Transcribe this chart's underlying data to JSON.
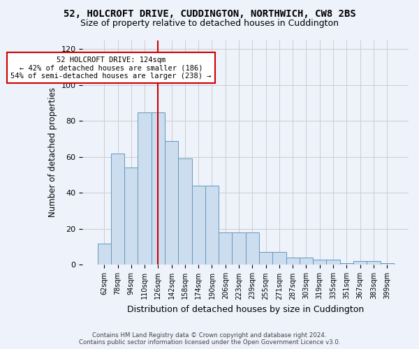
{
  "title": "52, HOLCROFT DRIVE, CUDDINGTON, NORTHWICH, CW8 2BS",
  "subtitle": "Size of property relative to detached houses in Cuddington",
  "xlabel": "Distribution of detached houses by size in Cuddington",
  "ylabel": "Number of detached properties",
  "bar_values": [
    12,
    62,
    54,
    85,
    85,
    69,
    59,
    44,
    44,
    18,
    18,
    18,
    7,
    7,
    4,
    4,
    3,
    3,
    1,
    2,
    2,
    1
  ],
  "bar_labels": [
    "62sqm",
    "78sqm",
    "94sqm",
    "110sqm",
    "126sqm",
    "142sqm",
    "158sqm",
    "174sqm",
    "190sqm",
    "206sqm",
    "223sqm",
    "239sqm",
    "255sqm",
    "271sqm",
    "287sqm",
    "303sqm",
    "319sqm",
    "335sqm",
    "351sqm",
    "367sqm",
    "383sqm",
    "399sqm"
  ],
  "bar_color": "#ccddf0",
  "bar_edge_color": "#6699bb",
  "vline_index": 4,
  "vline_color": "#cc0000",
  "annotation_text": "52 HOLCROFT DRIVE: 124sqm\n← 42% of detached houses are smaller (186)\n54% of semi-detached houses are larger (238) →",
  "annotation_box_color": "#ffffff",
  "annotation_box_edge": "#cc0000",
  "ylim": [
    0,
    125
  ],
  "yticks": [
    0,
    20,
    40,
    60,
    80,
    100,
    120
  ],
  "grid_color": "#cccccc",
  "bg_color": "#eef2fb",
  "footer_line1": "Contains HM Land Registry data © Crown copyright and database right 2024.",
  "footer_line2": "Contains public sector information licensed under the Open Government Licence v3.0.",
  "title_fontsize": 10,
  "subtitle_fontsize": 9,
  "xlabel_fontsize": 9,
  "ylabel_fontsize": 8.5
}
